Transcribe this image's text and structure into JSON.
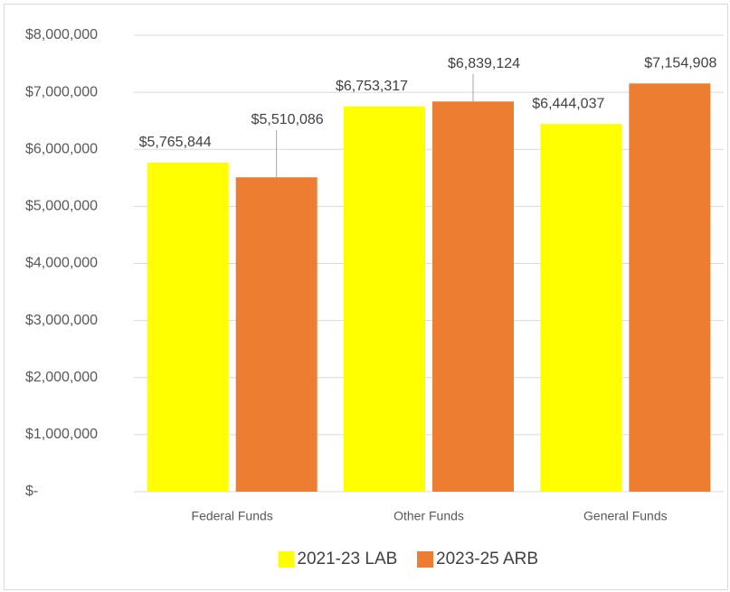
{
  "chart_data": {
    "type": "bar",
    "categories": [
      "Federal Funds",
      "Other Funds",
      "General Funds"
    ],
    "series": [
      {
        "name": "2021-23 LAB",
        "color": "#ffff00",
        "values": [
          5765844,
          6753317,
          6444037
        ],
        "value_labels": [
          "$5,765,844",
          "$6,753,317",
          "$6,444,037"
        ]
      },
      {
        "name": "2023-25 ARB",
        "color": "#ed7d31",
        "values": [
          5510086,
          6839124,
          7154908
        ],
        "value_labels": [
          "$5,510,086",
          "$6,839,124",
          "$7,154,908"
        ]
      }
    ],
    "ylim": [
      0,
      8000000
    ],
    "yticks": [
      {
        "value": 0,
        "label": "$-"
      },
      {
        "value": 1000000,
        "label": "$1,000,000"
      },
      {
        "value": 2000000,
        "label": "$2,000,000"
      },
      {
        "value": 3000000,
        "label": "$3,000,000"
      },
      {
        "value": 4000000,
        "label": "$4,000,000"
      },
      {
        "value": 5000000,
        "label": "$5,000,000"
      },
      {
        "value": 6000000,
        "label": "$6,000,000"
      },
      {
        "value": 7000000,
        "label": "$7,000,000"
      },
      {
        "value": 8000000,
        "label": "$8,000,000"
      }
    ],
    "grid": true,
    "legend": "bottom"
  }
}
